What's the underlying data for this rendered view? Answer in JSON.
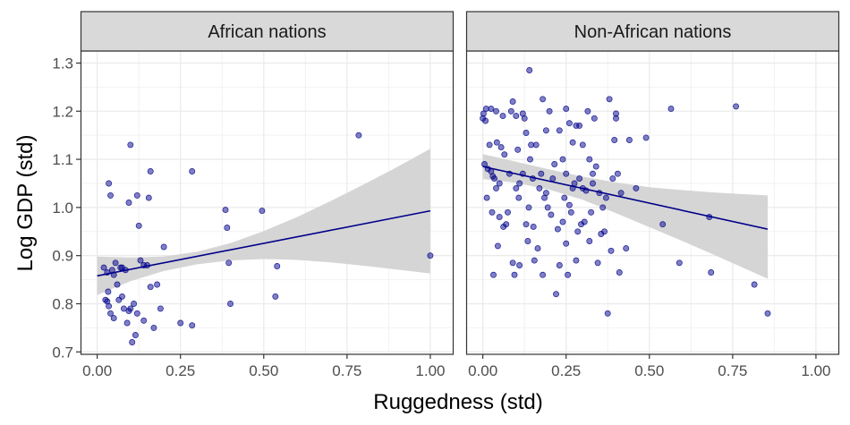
{
  "chart_data": {
    "type": "scatter",
    "xlabel": "Ruggedness (std)",
    "ylabel": "Log GDP (std)",
    "xlim": [
      -0.05,
      1.07
    ],
    "ylim": [
      0.695,
      1.325
    ],
    "x_ticks": [
      0.0,
      0.25,
      0.5,
      0.75,
      1.0
    ],
    "x_tick_labels": [
      "0.00",
      "0.25",
      "0.50",
      "0.75",
      "1.00"
    ],
    "y_ticks": [
      0.7,
      0.8,
      0.9,
      1.0,
      1.1,
      1.2,
      1.3
    ],
    "y_tick_labels": [
      "0.7",
      "0.8",
      "0.9",
      "1.0",
      "1.1",
      "1.2",
      "1.3"
    ],
    "grid": true,
    "point_color": "#00008B",
    "ribbon_color": "#D3D3D3",
    "strip_fill": "#D9D9D9",
    "panels": [
      {
        "title": "African nations",
        "points": [
          [
            0.02,
            0.875
          ],
          [
            0.025,
            0.808
          ],
          [
            0.03,
            0.805
          ],
          [
            0.033,
            0.825
          ],
          [
            0.035,
            0.795
          ],
          [
            0.04,
            0.78
          ],
          [
            0.045,
            0.87
          ],
          [
            0.05,
            0.86
          ],
          [
            0.055,
            0.885
          ],
          [
            0.06,
            0.84
          ],
          [
            0.065,
            0.808
          ],
          [
            0.07,
            0.875
          ],
          [
            0.075,
            0.815
          ],
          [
            0.08,
            0.79
          ],
          [
            0.085,
            0.87
          ],
          [
            0.09,
            0.76
          ],
          [
            0.095,
            0.785
          ],
          [
            0.1,
            0.79
          ],
          [
            0.105,
            0.72
          ],
          [
            0.11,
            0.8
          ],
          [
            0.115,
            0.735
          ],
          [
            0.12,
            0.78
          ],
          [
            0.13,
            0.89
          ],
          [
            0.14,
            0.765
          ],
          [
            0.15,
            0.88
          ],
          [
            0.16,
            0.835
          ],
          [
            0.17,
            0.75
          ],
          [
            0.18,
            0.84
          ],
          [
            0.19,
            0.79
          ],
          [
            0.2,
            0.918
          ],
          [
            0.035,
            1.05
          ],
          [
            0.04,
            1.025
          ],
          [
            0.095,
            1.01
          ],
          [
            0.1,
            1.13
          ],
          [
            0.12,
            1.025
          ],
          [
            0.125,
            0.962
          ],
          [
            0.155,
            1.02
          ],
          [
            0.16,
            1.075
          ],
          [
            0.25,
            0.76
          ],
          [
            0.285,
            0.755
          ],
          [
            0.285,
            1.075
          ],
          [
            0.385,
            0.995
          ],
          [
            0.39,
            0.958
          ],
          [
            0.395,
            0.885
          ],
          [
            0.4,
            0.8
          ],
          [
            0.495,
            0.993
          ],
          [
            0.535,
            0.815
          ],
          [
            0.54,
            0.878
          ],
          [
            0.785,
            1.15
          ],
          [
            1.0,
            0.9
          ],
          [
            0.03,
            0.865
          ],
          [
            0.05,
            0.77
          ],
          [
            0.075,
            0.875
          ],
          [
            0.14,
            0.88
          ]
        ],
        "fit": {
          "x": [
            0.0,
            1.0
          ],
          "y": [
            0.858,
            0.993
          ]
        },
        "ribbon": {
          "x": [
            0.0,
            0.1,
            0.2,
            0.3,
            0.4,
            0.5,
            0.6,
            0.7,
            0.8,
            0.9,
            1.0
          ],
          "lower": [
            0.818,
            0.847,
            0.868,
            0.882,
            0.89,
            0.893,
            0.891,
            0.886,
            0.879,
            0.871,
            0.863
          ],
          "upper": [
            0.898,
            0.896,
            0.898,
            0.908,
            0.926,
            0.951,
            0.98,
            1.013,
            1.048,
            1.084,
            1.122
          ]
        }
      },
      {
        "title": "Non-African nations",
        "points": [
          [
            0.0,
            1.185
          ],
          [
            0.002,
            1.195
          ],
          [
            0.005,
            1.09
          ],
          [
            0.008,
            1.18
          ],
          [
            0.01,
            1.205
          ],
          [
            0.012,
            1.02
          ],
          [
            0.015,
            1.08
          ],
          [
            0.02,
            1.13
          ],
          [
            0.025,
            1.075
          ],
          [
            0.025,
            1.205
          ],
          [
            0.028,
            0.99
          ],
          [
            0.03,
            1.065
          ],
          [
            0.032,
            0.86
          ],
          [
            0.035,
            1.06
          ],
          [
            0.04,
            1.2
          ],
          [
            0.04,
            1.04
          ],
          [
            0.042,
            1.135
          ],
          [
            0.045,
            0.92
          ],
          [
            0.05,
            0.98
          ],
          [
            0.05,
            1.05
          ],
          [
            0.055,
            1.125
          ],
          [
            0.06,
            1.19
          ],
          [
            0.062,
            0.96
          ],
          [
            0.065,
            1.11
          ],
          [
            0.07,
            0.965
          ],
          [
            0.075,
            0.99
          ],
          [
            0.08,
            1.07
          ],
          [
            0.085,
            1.2
          ],
          [
            0.09,
            1.22
          ],
          [
            0.09,
            0.885
          ],
          [
            0.095,
            0.86
          ],
          [
            0.1,
            1.04
          ],
          [
            0.1,
            1.19
          ],
          [
            0.105,
            1.12
          ],
          [
            0.108,
            1.02
          ],
          [
            0.11,
            1.05
          ],
          [
            0.11,
            0.88
          ],
          [
            0.12,
            1.195
          ],
          [
            0.12,
            1.07
          ],
          [
            0.125,
            1.185
          ],
          [
            0.13,
            0.965
          ],
          [
            0.13,
            1.155
          ],
          [
            0.135,
            0.93
          ],
          [
            0.138,
            1.0
          ],
          [
            0.14,
            1.285
          ],
          [
            0.142,
            1.1
          ],
          [
            0.145,
            1.13
          ],
          [
            0.15,
            1.06
          ],
          [
            0.152,
            0.96
          ],
          [
            0.155,
            0.89
          ],
          [
            0.16,
            1.13
          ],
          [
            0.165,
            0.915
          ],
          [
            0.17,
            1.04
          ],
          [
            0.175,
            1.07
          ],
          [
            0.18,
            0.86
          ],
          [
            0.18,
            1.225
          ],
          [
            0.185,
            1.02
          ],
          [
            0.19,
            1.03
          ],
          [
            0.19,
            1.16
          ],
          [
            0.195,
            1.0
          ],
          [
            0.2,
            1.2
          ],
          [
            0.205,
            0.985
          ],
          [
            0.21,
            1.06
          ],
          [
            0.215,
            1.09
          ],
          [
            0.22,
            0.82
          ],
          [
            0.225,
            0.955
          ],
          [
            0.23,
            1.16
          ],
          [
            0.23,
            0.88
          ],
          [
            0.24,
            1.1
          ],
          [
            0.24,
            0.97
          ],
          [
            0.245,
            1.02
          ],
          [
            0.25,
            1.07
          ],
          [
            0.25,
            0.925
          ],
          [
            0.25,
            1.205
          ],
          [
            0.255,
            0.86
          ],
          [
            0.26,
            1.175
          ],
          [
            0.26,
            1.005
          ],
          [
            0.265,
            0.99
          ],
          [
            0.27,
            1.04
          ],
          [
            0.27,
            1.135
          ],
          [
            0.275,
            1.05
          ],
          [
            0.28,
            1.17
          ],
          [
            0.28,
            0.89
          ],
          [
            0.285,
            0.95
          ],
          [
            0.29,
            1.17
          ],
          [
            0.29,
            1.06
          ],
          [
            0.295,
            0.965
          ],
          [
            0.3,
            1.04
          ],
          [
            0.3,
            1.13
          ],
          [
            0.305,
            0.97
          ],
          [
            0.31,
            1.035
          ],
          [
            0.315,
            1.2
          ],
          [
            0.32,
            1.1
          ],
          [
            0.32,
            0.93
          ],
          [
            0.325,
            0.99
          ],
          [
            0.33,
            1.05
          ],
          [
            0.33,
            1.07
          ],
          [
            0.335,
            1.185
          ],
          [
            0.34,
            1.085
          ],
          [
            0.345,
            0.885
          ],
          [
            0.35,
            1.03
          ],
          [
            0.355,
            0.945
          ],
          [
            0.36,
            1.0
          ],
          [
            0.365,
            0.95
          ],
          [
            0.37,
            1.02
          ],
          [
            0.375,
            0.78
          ],
          [
            0.38,
            1.225
          ],
          [
            0.385,
            0.91
          ],
          [
            0.39,
            1.06
          ],
          [
            0.395,
            1.14
          ],
          [
            0.4,
            1.185
          ],
          [
            0.4,
            1.195
          ],
          [
            0.405,
            1.07
          ],
          [
            0.41,
            0.865
          ],
          [
            0.415,
            1.03
          ],
          [
            0.43,
            0.915
          ],
          [
            0.44,
            1.14
          ],
          [
            0.46,
            1.04
          ],
          [
            0.49,
            1.145
          ],
          [
            0.54,
            0.965
          ],
          [
            0.565,
            1.205
          ],
          [
            0.59,
            0.885
          ],
          [
            0.685,
            0.865
          ],
          [
            0.68,
            0.98
          ],
          [
            0.76,
            1.21
          ],
          [
            0.815,
            0.84
          ],
          [
            0.855,
            0.78
          ]
        ],
        "fit": {
          "x": [
            0.0,
            0.855
          ],
          "y": [
            1.085,
            0.955
          ]
        },
        "ribbon": {
          "x": [
            0.0,
            0.1,
            0.2,
            0.3,
            0.4,
            0.5,
            0.6,
            0.7,
            0.8,
            0.855
          ],
          "lower": [
            1.059,
            1.051,
            1.037,
            1.016,
            0.988,
            0.959,
            0.93,
            0.9,
            0.869,
            0.852
          ],
          "upper": [
            1.111,
            1.095,
            1.079,
            1.064,
            1.052,
            1.042,
            1.036,
            1.031,
            1.027,
            1.025
          ]
        }
      }
    ]
  }
}
